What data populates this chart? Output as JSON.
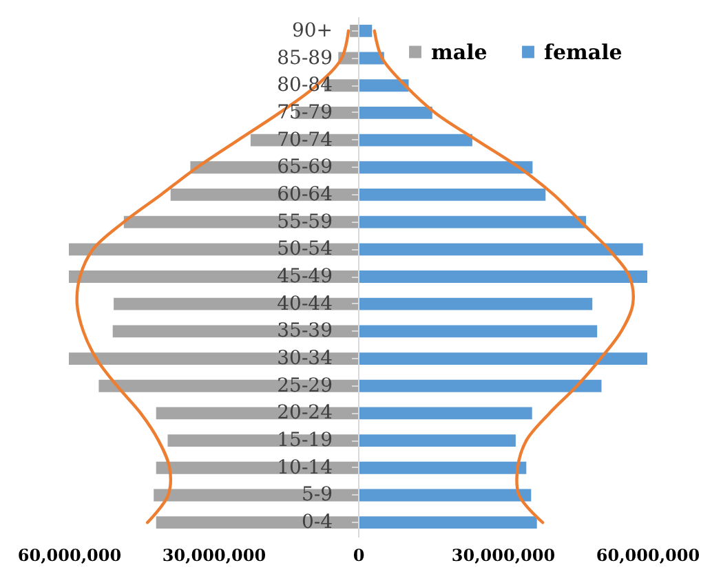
{
  "chart_data": {
    "type": "bar",
    "orientation": "horizontal",
    "categories": [
      "90+",
      "85-89",
      "80-84",
      "75-79",
      "70-74",
      "65-69",
      "60-64",
      "55-59",
      "50-54",
      "45-49",
      "40-44",
      "35-39",
      "30-34",
      "25-29",
      "20-24",
      "15-19",
      "10-14",
      "5-9",
      "0-4"
    ],
    "series": [
      {
        "name": "male",
        "color": "#a5a5a5",
        "values": [
          -1700000,
          -4100000,
          -7000000,
          -13000000,
          -22300000,
          -34800000,
          -38900000,
          -48600000,
          -60000000,
          -60000000,
          -50700000,
          -50900000,
          -60000000,
          -53800000,
          -41900000,
          -39500000,
          -41900000,
          -42400000,
          -41900000
        ]
      },
      {
        "name": "female",
        "color": "#5b9bd5",
        "values": [
          2900000,
          5400000,
          10500000,
          15400000,
          23700000,
          36200000,
          38900000,
          47300000,
          59100000,
          60000000,
          48600000,
          49600000,
          60000000,
          50500000,
          36100000,
          32700000,
          34900000,
          35900000,
          37100000
        ]
      },
      {
        "type": "line",
        "color": "#ed7d31",
        "values": [
          -2000000,
          -3400000,
          -8600000,
          -16300000,
          -24900000,
          -33400000,
          -40900000,
          -48600000,
          -55000000,
          -57700000,
          -58300000,
          -57000000,
          -54300000,
          -50000000,
          -45100000,
          -41400000,
          -39100000,
          -39400000,
          -43700000
        ]
      },
      {
        "type": "line",
        "color": "#ed7d31",
        "values": [
          3400000,
          5000000,
          9800000,
          16000000,
          24600000,
          33400000,
          40600000,
          46300000,
          52000000,
          56300000,
          57000000,
          54600000,
          50300000,
          45400000,
          39700000,
          34900000,
          33100000,
          33400000,
          38300000
        ]
      }
    ],
    "xlim": [
      -60000000,
      60000000
    ],
    "stacked": true,
    "xticks": [
      {
        "value": -60000000,
        "label": "60,000,000"
      },
      {
        "value": -30000000,
        "label": "30,000,000"
      },
      0,
      {
        "value": 30000000,
        "label": "30,000,000"
      },
      {
        "value": 60000000,
        "label": "60,000,000"
      }
    ],
    "legend": "top right",
    "grid": false
  }
}
